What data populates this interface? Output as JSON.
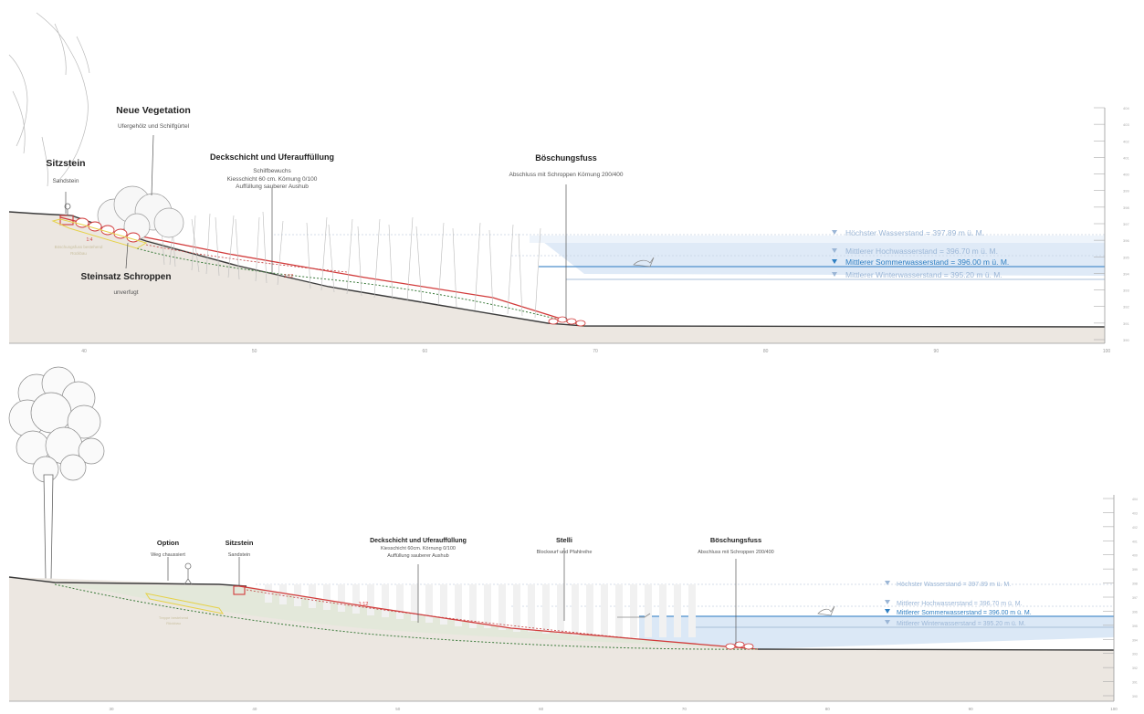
{
  "section1": {
    "labels": {
      "sitzstein_title": "Sitzstein",
      "sitzstein_sub": "Sandstein",
      "vegetation_title": "Neue Vegetation",
      "vegetation_sub": "Ufergehölz und Schilfgürtel",
      "deck_title": "Deckschicht und Uferauffüllung",
      "deck_sub1": "Schilfbewuchs",
      "deck_sub2": "Kiesschicht 60 cm. Körnung 0/100",
      "deck_sub3": "Auffüllung sauberer Aushub",
      "fuss_title": "Böschungsfuss",
      "fuss_sub": "Abschluss mit Schroppen Körnung 200/400",
      "steinsatz_title": "Steinsatz Schroppen",
      "steinsatz_sub": "unverfugt",
      "wall_note1": "Böschungsfuss bestehend",
      "wall_note2": "Rückbau",
      "slope_ratio": "1:12",
      "slope_small": "1:4"
    },
    "water_levels": [
      {
        "label": "Höchster Wasserstand = 397.89 m ü. M.",
        "color": "#9bb6d6"
      },
      {
        "label": "Mittlerer Hochwasserstand = 396.70 m ü. M.",
        "color": "#9bb6d6"
      },
      {
        "label": "Mittlerer Sommerwasserstand = 396.00 m ü. M.",
        "color": "#2f7fc2"
      },
      {
        "label": "Mittlerer Winterwasserstand = 395.20 m ü. M.",
        "color": "#9bb6d6"
      }
    ],
    "x_ticks": [
      "40",
      "50",
      "60",
      "70",
      "80",
      "90",
      "100"
    ],
    "y_ticks": [
      "404",
      "403",
      "402",
      "401",
      "400",
      "399",
      "398",
      "397",
      "396",
      "395",
      "394",
      "393",
      "392",
      "391",
      "390"
    ]
  },
  "section2": {
    "labels": {
      "option_title": "Option",
      "option_sub": "Weg chaussiert",
      "sitzstein_title": "Sitzstein",
      "sitzstein_sub": "Sandstein",
      "deck_title": "Deckschicht und Uferauffüllung",
      "deck_sub1": "Kiesschicht 60cm. Körnung 0/100",
      "deck_sub2": "Auffüllung sauberer Aushub",
      "stelli_title": "Stelli",
      "stelli_sub": "Blockwurf und Pfahlreihe",
      "fuss_title": "Böschungsfuss",
      "fuss_sub": "Abschluss mit Schroppen 200/400",
      "foundation_note1": "Treppe bestehend",
      "foundation_note2": "Rückbau",
      "slope_ratio": "1:12"
    },
    "water_levels": [
      {
        "label": "Höchster Wasserstand = 397.89 m ü. M.",
        "color": "#9bb6d6"
      },
      {
        "label": "Mittlerer Hochwasserstand = 396.70 m ü. M.",
        "color": "#9bb6d6"
      },
      {
        "label": "Mittlerer Sommerwasserstand = 396.00 m ü. M.",
        "color": "#2f7fc2"
      },
      {
        "label": "Mittlerer Winterwasserstand = 395.20 m ü. M.",
        "color": "#9bb6d6"
      }
    ],
    "x_ticks": [
      "30",
      "40",
      "50",
      "60",
      "70",
      "80",
      "90",
      "100"
    ],
    "y_ticks": [
      "404",
      "403",
      "402",
      "401",
      "400",
      "399",
      "398",
      "397",
      "396",
      "395",
      "394",
      "393",
      "392",
      "391",
      "390"
    ]
  }
}
